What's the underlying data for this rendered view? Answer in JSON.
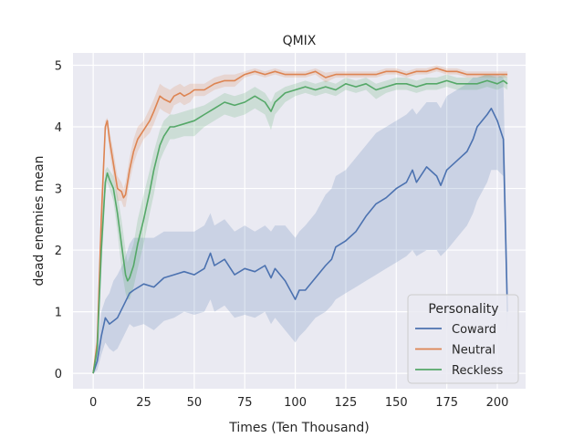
{
  "chart_data": {
    "type": "line",
    "title": "QMIX",
    "xlabel": "Times (Ten Thousand)",
    "ylabel": "dead enemies mean",
    "xlim": [
      -10,
      214
    ],
    "ylim": [
      -0.25,
      5.2
    ],
    "xticks": [
      0,
      25,
      50,
      75,
      100,
      125,
      150,
      175,
      200
    ],
    "yticks": [
      0,
      1,
      2,
      3,
      4,
      5
    ],
    "grid": true,
    "legend": {
      "title": "Personality",
      "placement": "lower-right"
    },
    "series": [
      {
        "name": "Coward",
        "color": "#4c72b0",
        "x": [
          0,
          2,
          4,
          6,
          8,
          10,
          12,
          15,
          18,
          20,
          25,
          30,
          35,
          40,
          45,
          50,
          55,
          58,
          60,
          65,
          70,
          75,
          80,
          85,
          88,
          90,
          95,
          100,
          102,
          105,
          110,
          115,
          118,
          120,
          125,
          130,
          135,
          140,
          145,
          150,
          155,
          158,
          160,
          165,
          170,
          172,
          175,
          180,
          185,
          188,
          190,
          195,
          197,
          200,
          203,
          205
        ],
        "y": [
          0,
          0.2,
          0.6,
          0.9,
          0.8,
          0.85,
          0.9,
          1.1,
          1.3,
          1.35,
          1.45,
          1.4,
          1.55,
          1.6,
          1.65,
          1.6,
          1.7,
          1.95,
          1.75,
          1.85,
          1.6,
          1.7,
          1.65,
          1.75,
          1.55,
          1.7,
          1.5,
          1.2,
          1.35,
          1.35,
          1.55,
          1.75,
          1.85,
          2.05,
          2.15,
          2.3,
          2.55,
          2.75,
          2.85,
          3.0,
          3.1,
          3.3,
          3.1,
          3.35,
          3.2,
          3.05,
          3.3,
          3.45,
          3.6,
          3.8,
          4.0,
          4.2,
          4.3,
          4.1,
          3.8,
          1.0
        ],
        "upper": [
          0.05,
          0.4,
          1.0,
          1.2,
          1.3,
          1.5,
          1.6,
          1.8,
          2.1,
          2.2,
          2.2,
          2.2,
          2.3,
          2.3,
          2.3,
          2.3,
          2.4,
          2.6,
          2.4,
          2.5,
          2.3,
          2.4,
          2.3,
          2.4,
          2.3,
          2.4,
          2.4,
          2.2,
          2.3,
          2.4,
          2.6,
          2.9,
          3.0,
          3.2,
          3.3,
          3.5,
          3.7,
          3.9,
          4.0,
          4.1,
          4.2,
          4.3,
          4.2,
          4.4,
          4.4,
          4.3,
          4.5,
          4.6,
          4.7,
          4.8,
          4.8,
          4.85,
          4.85,
          4.85,
          4.8,
          1.5
        ],
        "lower": [
          0,
          0.05,
          0.3,
          0.5,
          0.4,
          0.35,
          0.4,
          0.6,
          0.8,
          0.75,
          0.8,
          0.7,
          0.85,
          0.9,
          1.0,
          0.95,
          1.0,
          1.2,
          1.0,
          1.1,
          0.9,
          0.95,
          0.9,
          1.0,
          0.8,
          0.9,
          0.7,
          0.5,
          0.6,
          0.7,
          0.9,
          1.0,
          1.1,
          1.2,
          1.3,
          1.4,
          1.5,
          1.6,
          1.7,
          1.8,
          1.9,
          2.0,
          1.9,
          2.0,
          2.0,
          1.9,
          2.0,
          2.2,
          2.4,
          2.6,
          2.8,
          3.1,
          3.3,
          3.3,
          3.2,
          0.5
        ]
      },
      {
        "name": "Neutral",
        "color": "#dd8452",
        "x": [
          0,
          2,
          4,
          6,
          7,
          8,
          10,
          12,
          14,
          15,
          16,
          18,
          20,
          22,
          25,
          28,
          30,
          33,
          35,
          38,
          40,
          43,
          45,
          48,
          50,
          55,
          60,
          65,
          70,
          75,
          80,
          85,
          90,
          95,
          100,
          105,
          110,
          115,
          120,
          125,
          130,
          135,
          140,
          145,
          150,
          155,
          160,
          165,
          170,
          175,
          180,
          185,
          190,
          195,
          200,
          205
        ],
        "y": [
          0,
          0.5,
          2.5,
          4.0,
          4.1,
          3.8,
          3.4,
          3.0,
          2.95,
          2.85,
          2.9,
          3.3,
          3.6,
          3.8,
          3.95,
          4.1,
          4.25,
          4.5,
          4.45,
          4.4,
          4.5,
          4.55,
          4.5,
          4.55,
          4.6,
          4.6,
          4.7,
          4.75,
          4.75,
          4.85,
          4.9,
          4.85,
          4.9,
          4.85,
          4.85,
          4.85,
          4.9,
          4.8,
          4.85,
          4.85,
          4.85,
          4.85,
          4.85,
          4.9,
          4.9,
          4.85,
          4.9,
          4.9,
          4.95,
          4.9,
          4.9,
          4.85,
          4.85,
          4.85,
          4.85,
          4.85
        ],
        "upper": [
          0.05,
          0.7,
          2.9,
          4.1,
          4.15,
          3.95,
          3.6,
          3.2,
          3.1,
          3.0,
          3.1,
          3.5,
          3.8,
          4.0,
          4.1,
          4.3,
          4.45,
          4.7,
          4.65,
          4.6,
          4.65,
          4.7,
          4.65,
          4.7,
          4.7,
          4.7,
          4.8,
          4.85,
          4.85,
          4.9,
          4.95,
          4.9,
          4.95,
          4.9,
          4.9,
          4.9,
          4.95,
          4.88,
          4.9,
          4.9,
          4.9,
          4.9,
          4.9,
          4.95,
          4.95,
          4.9,
          4.95,
          4.95,
          5.0,
          4.95,
          4.95,
          4.9,
          4.9,
          4.9,
          4.9,
          4.9
        ],
        "lower": [
          0,
          0.3,
          2.1,
          3.9,
          4.0,
          3.6,
          3.2,
          2.8,
          2.8,
          2.7,
          2.7,
          3.1,
          3.4,
          3.6,
          3.8,
          3.9,
          4.05,
          4.3,
          4.25,
          4.2,
          4.35,
          4.4,
          4.35,
          4.4,
          4.5,
          4.5,
          4.6,
          4.65,
          4.65,
          4.8,
          4.85,
          4.8,
          4.85,
          4.8,
          4.8,
          4.8,
          4.85,
          4.72,
          4.8,
          4.8,
          4.8,
          4.8,
          4.8,
          4.85,
          4.85,
          4.8,
          4.85,
          4.85,
          4.9,
          4.85,
          4.85,
          4.8,
          4.8,
          4.8,
          4.8,
          4.8
        ]
      },
      {
        "name": "Reckless",
        "color": "#55a868",
        "x": [
          0,
          2,
          4,
          6,
          7,
          8,
          10,
          12,
          14,
          16,
          17,
          18,
          20,
          22,
          25,
          28,
          30,
          33,
          35,
          38,
          40,
          45,
          50,
          55,
          60,
          65,
          70,
          75,
          80,
          85,
          88,
          90,
          95,
          100,
          105,
          110,
          115,
          120,
          125,
          130,
          135,
          140,
          145,
          150,
          155,
          160,
          165,
          170,
          175,
          180,
          185,
          190,
          195,
          200,
          203,
          205
        ],
        "y": [
          0,
          0.4,
          2.0,
          3.1,
          3.25,
          3.15,
          3.0,
          2.6,
          2.1,
          1.6,
          1.5,
          1.55,
          1.75,
          2.1,
          2.5,
          2.95,
          3.3,
          3.7,
          3.85,
          4.0,
          4.0,
          4.05,
          4.1,
          4.2,
          4.3,
          4.4,
          4.35,
          4.4,
          4.5,
          4.4,
          4.25,
          4.4,
          4.55,
          4.6,
          4.65,
          4.6,
          4.65,
          4.6,
          4.7,
          4.65,
          4.7,
          4.6,
          4.65,
          4.7,
          4.7,
          4.65,
          4.7,
          4.7,
          4.75,
          4.7,
          4.7,
          4.7,
          4.75,
          4.7,
          4.75,
          4.7
        ],
        "upper": [
          0.05,
          0.6,
          2.4,
          3.3,
          3.35,
          3.3,
          3.2,
          2.9,
          2.5,
          2.0,
          1.8,
          1.9,
          2.1,
          2.5,
          2.9,
          3.3,
          3.6,
          3.95,
          4.1,
          4.2,
          4.2,
          4.25,
          4.3,
          4.35,
          4.45,
          4.55,
          4.5,
          4.55,
          4.65,
          4.55,
          4.4,
          4.55,
          4.65,
          4.7,
          4.75,
          4.7,
          4.75,
          4.7,
          4.8,
          4.75,
          4.8,
          4.7,
          4.75,
          4.8,
          4.8,
          4.75,
          4.8,
          4.8,
          4.85,
          4.8,
          4.8,
          4.8,
          4.85,
          4.8,
          4.85,
          4.8
        ],
        "lower": [
          0,
          0.2,
          1.6,
          2.9,
          3.1,
          3.0,
          2.8,
          2.3,
          1.7,
          1.3,
          1.2,
          1.2,
          1.4,
          1.7,
          2.1,
          2.6,
          2.9,
          3.45,
          3.6,
          3.8,
          3.8,
          3.85,
          3.85,
          4.0,
          4.1,
          4.2,
          4.15,
          4.2,
          4.3,
          4.2,
          3.95,
          4.2,
          4.4,
          4.5,
          4.55,
          4.5,
          4.55,
          4.5,
          4.6,
          4.55,
          4.6,
          4.45,
          4.55,
          4.6,
          4.6,
          4.55,
          4.6,
          4.6,
          4.65,
          4.6,
          4.6,
          4.6,
          4.65,
          4.6,
          4.65,
          4.6
        ]
      }
    ]
  }
}
